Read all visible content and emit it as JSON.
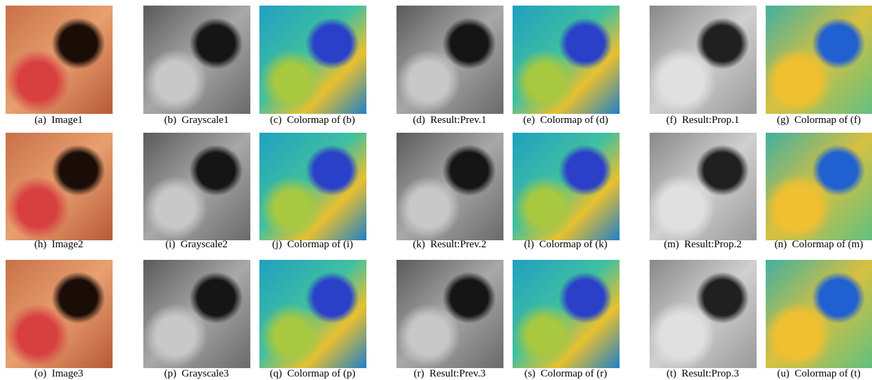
{
  "figure": {
    "rows": [
      [
        "(a)  Image1",
        "(b)  Grayscale1",
        "(c)  Colormap of (b)",
        "(d)  Result:Prev.1",
        "(e)  Colormap of (d)",
        "(f)  Result:Prop.1",
        "(g)  Colormap of (f)"
      ],
      [
        "(h)  Image2",
        "(i)  Grayscale2",
        "(j)  Colormap of (i)",
        "(k)  Result:Prev.2",
        "(l)  Colormap of (k)",
        "(m)  Result:Prop.2",
        "(n)  Colormap of (m)"
      ],
      [
        "(o)  Image3",
        "(p)  Grayscale3",
        "(q)  Colormap of (p)",
        "(r)  Result:Prev.3",
        "(s)  Colormap of (r)",
        "(t)  Result:Prop.3",
        "(u)  Colormap of (t)"
      ]
    ]
  }
}
